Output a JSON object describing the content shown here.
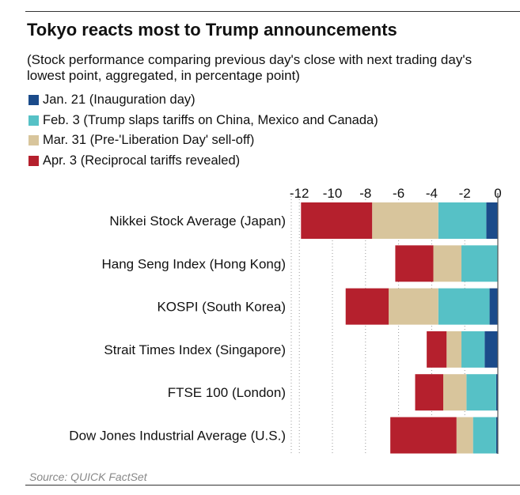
{
  "title": "Tokyo reacts most to Trump announcements",
  "subtitle": "(Stock performance comparing previous day's close with next trading day's lowest point, aggregated, in percentage point)",
  "source": "Source: QUICK FactSet",
  "colors": {
    "jan21": "#1b4b8a",
    "feb3": "#56c1c6",
    "mar31": "#d8c59c",
    "apr3": "#b5202d",
    "axis": "#555555",
    "grid": "#9a9a9a"
  },
  "legend": [
    {
      "label": "Jan. 21 (Inauguration day)",
      "color": "#1b4b8a"
    },
    {
      "label": "Feb. 3 (Trump slaps tariffs on China, Mexico and Canada)",
      "color": "#56c1c6"
    },
    {
      "label": "Mar. 31 (Pre-'Liberation Day' sell-off)",
      "color": "#d8c59c"
    },
    {
      "label": "Apr. 3 (Reciprocal tariffs revealed)",
      "color": "#b5202d"
    }
  ],
  "chart_data": {
    "type": "bar",
    "orientation": "horizontal",
    "stacked": true,
    "categories": [
      "Nikkei Stock Average (Japan)",
      "Hang Seng Index (Hong Kong)",
      "KOSPI (South Korea)",
      "Strait Times Index (Singapore)",
      "FTSE 100 (London)",
      "Dow Jones Industrial Average (U.S.)"
    ],
    "series": [
      {
        "name": "Jan. 21 (Inauguration day)",
        "color": "#1b4b8a",
        "values": [
          -0.7,
          0,
          -0.5,
          -0.8,
          -0.1,
          -0.1
        ]
      },
      {
        "name": "Feb. 3 (Trump slaps tariffs on China, Mexico and Canada)",
        "color": "#56c1c6",
        "values": [
          -2.9,
          -2.2,
          -3.1,
          -1.4,
          -1.8,
          -1.4
        ]
      },
      {
        "name": "Mar. 31 (Pre-'Liberation Day' sell-off)",
        "color": "#d8c59c",
        "values": [
          -4.0,
          -1.7,
          -3.0,
          -0.9,
          -1.4,
          -1.0
        ]
      },
      {
        "name": "Apr. 3 (Reciprocal tariffs revealed)",
        "color": "#b5202d",
        "values": [
          -4.3,
          -2.3,
          -2.6,
          -1.2,
          -1.7,
          -4.0
        ]
      }
    ],
    "x_ticks": [
      "-12",
      "-10",
      "-8",
      "-6",
      "-4",
      "-2",
      "0"
    ],
    "xlim": [
      -12.5,
      0
    ],
    "grid": "vertical-dotted",
    "legend_position": "top-left"
  }
}
